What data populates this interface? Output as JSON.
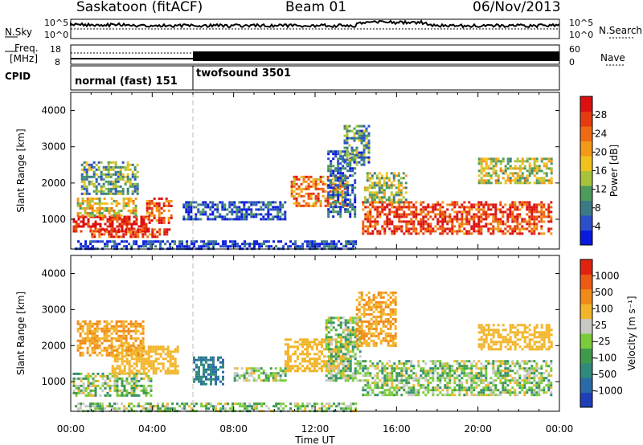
{
  "header": {
    "station": "Saskatoon (fitACF)",
    "beam": "Beam 01",
    "date": "06/Nov/2013"
  },
  "panels": {
    "noise": {
      "left_label": "N.Sky",
      "right_label": "N.Search",
      "left_ticks": [
        "10^5",
        "10^0"
      ],
      "right_ticks": [
        "10^5",
        "10^0"
      ]
    },
    "freq": {
      "left_label_1": "Freq.",
      "left_label_2": "[MHz]",
      "left_ticks": [
        "18",
        "8"
      ],
      "right_label": "Nave",
      "right_ticks": [
        "60",
        "0"
      ]
    },
    "cpid": {
      "label": "CPID",
      "modes": [
        "normal (fast) 151",
        "twofsound 3501"
      ]
    }
  },
  "axes": {
    "y_label": "Slant Range [km]",
    "y_ticks": [
      "1000",
      "2000",
      "3000",
      "4000"
    ],
    "x_label": "Time UT",
    "x_ticks": [
      "00:00",
      "04:00",
      "08:00",
      "12:00",
      "16:00",
      "20:00",
      "00:00"
    ]
  },
  "colorbars": {
    "power": {
      "label": "Power [dB]",
      "ticks": [
        "4",
        "8",
        "12",
        "16",
        "20",
        "24",
        "28"
      ],
      "colors": [
        "#0a1adc",
        "#2b4fc8",
        "#3a7a86",
        "#4c9a5c",
        "#a8c33a",
        "#f2c21c",
        "#f29a18",
        "#ee6a12",
        "#e63a10",
        "#dc1010"
      ]
    },
    "velocity": {
      "label": "Velocity [m s⁻¹]",
      "ticks": [
        "1000",
        "500",
        "100",
        "25",
        "-25",
        "-100",
        "-500",
        "-1000"
      ],
      "colors": [
        "#1f3fb8",
        "#2a6aa8",
        "#2f8a7a",
        "#3f9a4c",
        "#7acc3a",
        "#c8c8c4",
        "#f2b52a",
        "#f08a18",
        "#ec5a14",
        "#e02410"
      ]
    }
  },
  "chart_data": {
    "type": "heatmap",
    "xlim_hours": [
      0,
      24
    ],
    "ylim_km": [
      180,
      4500
    ],
    "mode_change_hour": 6.0,
    "power_regions": [
      {
        "t0": 0.1,
        "t1": 3.8,
        "r0": 700,
        "r1": 1100,
        "level": 0.95
      },
      {
        "t0": 1.0,
        "t1": 4.8,
        "r0": 500,
        "r1": 750,
        "level": 0.85
      },
      {
        "t0": 3.7,
        "t1": 5.0,
        "r0": 900,
        "r1": 1600,
        "level": 0.8
      },
      {
        "t0": 0.3,
        "t1": 3.2,
        "r0": 1100,
        "r1": 1600,
        "level": 0.55
      },
      {
        "t0": 0.5,
        "t1": 3.3,
        "r0": 1700,
        "r1": 2600,
        "level": 0.35
      },
      {
        "t0": 5.5,
        "t1": 10.5,
        "r0": 1000,
        "r1": 1500,
        "level": 0.15
      },
      {
        "t0": 10.8,
        "t1": 13.6,
        "r0": 1400,
        "r1": 2200,
        "level": 0.7
      },
      {
        "t0": 12.6,
        "t1": 14.0,
        "r0": 1100,
        "r1": 2900,
        "level": 0.2
      },
      {
        "t0": 13.4,
        "t1": 14.6,
        "r0": 2500,
        "r1": 3600,
        "level": 0.3
      },
      {
        "t0": 14.3,
        "t1": 23.6,
        "r0": 600,
        "r1": 1500,
        "level": 0.85
      },
      {
        "t0": 14.4,
        "t1": 16.5,
        "r0": 1500,
        "r1": 2300,
        "level": 0.45
      },
      {
        "t0": 20.0,
        "t1": 23.6,
        "r0": 2000,
        "r1": 2700,
        "level": 0.5
      },
      {
        "t0": 0.2,
        "t1": 14.0,
        "r0": 200,
        "r1": 420,
        "level": 0.1
      }
    ],
    "velocity_regions": [
      {
        "t0": 0.1,
        "t1": 4.0,
        "r0": 600,
        "r1": 1250,
        "vel": 0.0
      },
      {
        "t0": 2.0,
        "t1": 5.2,
        "r0": 1200,
        "r1": 2000,
        "vel": -150
      },
      {
        "t0": 0.3,
        "t1": 3.5,
        "r0": 1700,
        "r1": 2700,
        "vel": -300
      },
      {
        "t0": 6.0,
        "t1": 7.5,
        "r0": 900,
        "r1": 1700,
        "vel": 300
      },
      {
        "t0": 8.0,
        "t1": 10.5,
        "r0": 1000,
        "r1": 1400,
        "vel": 0.0
      },
      {
        "t0": 10.5,
        "t1": 13.8,
        "r0": 1300,
        "r1": 2200,
        "vel": -150
      },
      {
        "t0": 12.5,
        "t1": 14.2,
        "r0": 1000,
        "r1": 2800,
        "vel": 0.0
      },
      {
        "t0": 14.0,
        "t1": 16.0,
        "r0": 2000,
        "r1": 3500,
        "vel": -300
      },
      {
        "t0": 14.3,
        "t1": 23.6,
        "r0": 600,
        "r1": 1600,
        "vel": 0.0
      },
      {
        "t0": 20.0,
        "t1": 23.6,
        "r0": 1900,
        "r1": 2600,
        "vel": -200
      },
      {
        "t0": 0.2,
        "t1": 14.0,
        "r0": 200,
        "r1": 420,
        "vel": 0.0
      }
    ]
  }
}
